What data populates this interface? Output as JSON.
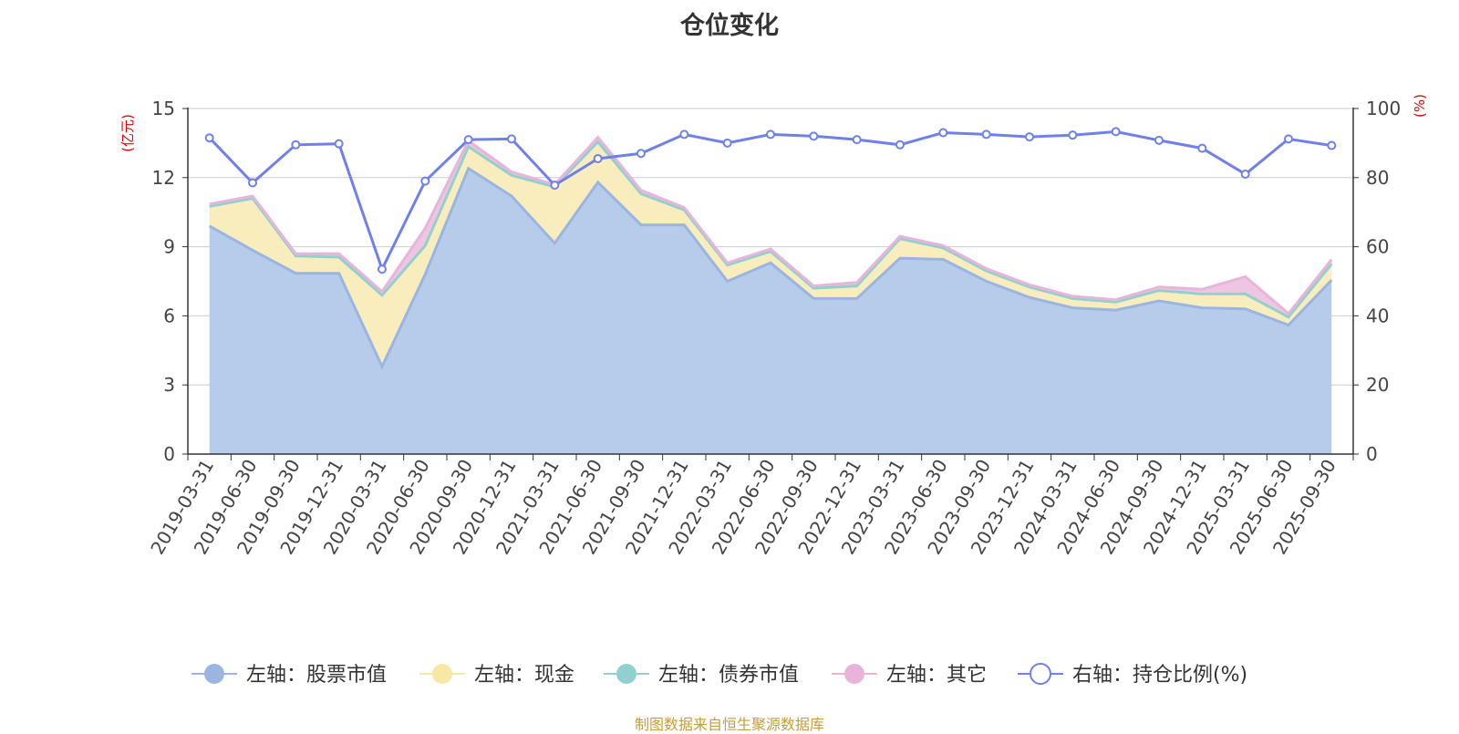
{
  "chart_data": {
    "type": "area",
    "title": "仓位变化",
    "left_axis_label": "(亿元)",
    "right_axis_label": "(%)",
    "ylim_left": [
      0,
      15
    ],
    "ylim_right": [
      0,
      100
    ],
    "left_ticks": [
      0,
      3,
      6,
      9,
      12,
      15
    ],
    "right_ticks": [
      0,
      20,
      40,
      60,
      80,
      100
    ],
    "grid": true,
    "legend_position": "bottom",
    "categories": [
      "2019-03-31",
      "2019-06-30",
      "2019-09-30",
      "2019-12-31",
      "2020-03-31",
      "2020-06-30",
      "2020-09-30",
      "2020-12-31",
      "2021-03-31",
      "2021-06-30",
      "2021-09-30",
      "2021-12-31",
      "2022-03-31",
      "2022-06-30",
      "2022-09-30",
      "2022-12-31",
      "2023-03-31",
      "2023-06-30",
      "2023-09-30",
      "2023-12-31",
      "2024-03-31",
      "2024-06-30",
      "2024-09-30",
      "2024-12-31",
      "2025-03-31",
      "2025-06-30",
      "2025-09-30"
    ],
    "series": [
      {
        "name": "左轴：股票市值",
        "axis": "left",
        "kind": "stacked-area",
        "color": "#9ab6e0",
        "fill": "#b7cbea",
        "values": [
          9.9,
          8.85,
          7.85,
          7.85,
          3.8,
          7.8,
          12.4,
          11.2,
          9.15,
          11.8,
          9.95,
          9.95,
          7.5,
          8.3,
          6.75,
          6.75,
          8.5,
          8.45,
          7.5,
          6.8,
          6.35,
          6.25,
          6.65,
          6.35,
          6.3,
          5.6,
          7.55
        ]
      },
      {
        "name": "左轴：现金",
        "axis": "left",
        "kind": "stacked-area",
        "color": "#f7e8a6",
        "fill": "#f9edbd",
        "values": [
          0.85,
          2.25,
          0.75,
          0.7,
          3.1,
          1.25,
          0.95,
          0.9,
          2.45,
          1.75,
          1.35,
          0.65,
          0.7,
          0.5,
          0.45,
          0.55,
          0.85,
          0.5,
          0.45,
          0.45,
          0.4,
          0.35,
          0.45,
          0.6,
          0.65,
          0.35,
          0.7
        ]
      },
      {
        "name": "左轴：债券市值",
        "axis": "left",
        "kind": "stacked-area",
        "color": "#92d0d0",
        "fill": "#b6e0e0",
        "values": [
          0,
          0,
          0,
          0,
          0,
          0,
          0,
          0,
          0,
          0,
          0,
          0,
          0,
          0,
          0,
          0,
          0,
          0,
          0,
          0,
          0,
          0,
          0,
          0,
          0,
          0,
          0
        ]
      },
      {
        "name": "左轴：其它",
        "axis": "left",
        "kind": "stacked-area",
        "color": "#e8b4da",
        "fill": "#eec5e3",
        "values": [
          0.1,
          0.1,
          0.1,
          0.15,
          0.15,
          0.75,
          0.25,
          0.15,
          0.1,
          0.2,
          0.15,
          0.1,
          0.1,
          0.1,
          0.1,
          0.15,
          0.1,
          0.1,
          0.1,
          0.1,
          0.1,
          0.1,
          0.15,
          0.2,
          0.75,
          0.15,
          0.2
        ]
      },
      {
        "name": "右轴：持仓比例(%)",
        "axis": "right",
        "kind": "line",
        "color": "#7080ea",
        "values": [
          91.5,
          78.5,
          89.5,
          89.8,
          53.5,
          79,
          91,
          91.2,
          77.8,
          85.5,
          87,
          92.5,
          90,
          92.5,
          92,
          91,
          89.5,
          93,
          92.5,
          91.8,
          92.3,
          93.3,
          90.8,
          88.5,
          81,
          91.2,
          89.3
        ]
      }
    ],
    "source_note": "制图数据来自恒生聚源数据库"
  }
}
